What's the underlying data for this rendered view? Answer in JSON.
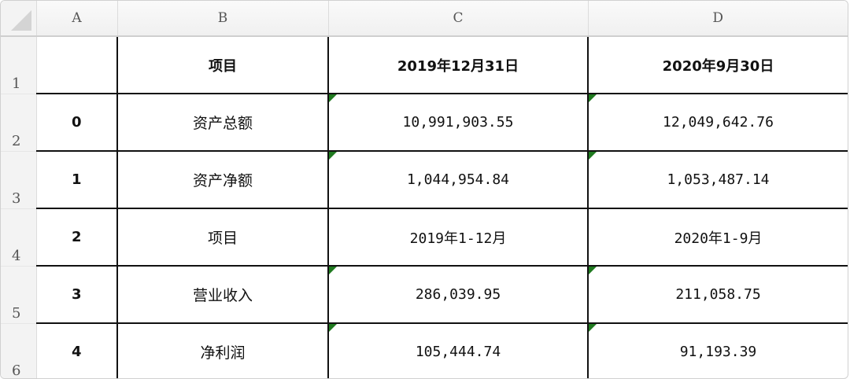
{
  "columns": [
    "A",
    "B",
    "C",
    "D"
  ],
  "rows": [
    {
      "num": "1",
      "cells": [
        "",
        "项目",
        "2019年12月31日",
        "2020年9月30日"
      ],
      "flags": [
        false,
        false,
        false,
        false
      ]
    },
    {
      "num": "2",
      "cells": [
        "0",
        "资产总额",
        "10,991,903.55",
        "12,049,642.76"
      ],
      "flags": [
        false,
        false,
        true,
        true
      ]
    },
    {
      "num": "3",
      "cells": [
        "1",
        "资产净额",
        "1,044,954.84",
        "1,053,487.14"
      ],
      "flags": [
        false,
        false,
        true,
        true
      ]
    },
    {
      "num": "4",
      "cells": [
        "2",
        "项目",
        "2019年1-12月",
        "2020年1-9月"
      ],
      "flags": [
        false,
        false,
        false,
        false
      ]
    },
    {
      "num": "5",
      "cells": [
        "3",
        "营业收入",
        "286,039.95",
        "211,058.75"
      ],
      "flags": [
        false,
        false,
        true,
        true
      ]
    },
    {
      "num": "6",
      "cells": [
        "4",
        "净利润",
        "105,444.74",
        "91,193.39"
      ],
      "flags": [
        false,
        false,
        true,
        true
      ]
    }
  ],
  "colors": {
    "flag": "#1f7a1f",
    "grid": "#111111",
    "header_bg": "#f3f3f3"
  }
}
